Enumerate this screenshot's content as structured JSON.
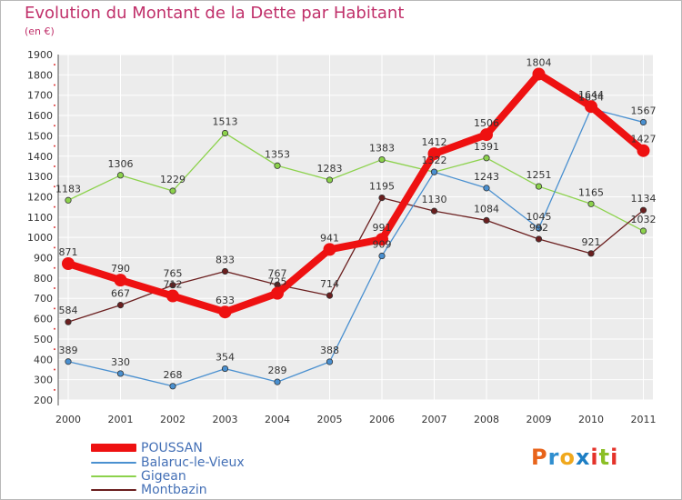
{
  "title": "Evolution du Montant de la Dette par Habitant",
  "subtitle": "(en €)",
  "logo": "Proxiti",
  "chart_data": {
    "type": "line",
    "x": [
      "2000",
      "2001",
      "2002",
      "2003",
      "2004",
      "2005",
      "2006",
      "2007",
      "2008",
      "2009",
      "2010",
      "2011"
    ],
    "yticks": [
      "200",
      "300",
      "400",
      "500",
      "600",
      "700",
      "800",
      "900",
      "1000",
      "1100",
      "1200",
      "1300",
      "1400",
      "1500",
      "1600",
      "1700",
      "1800",
      "1900"
    ],
    "ylim": [
      200,
      1900
    ],
    "grid": true,
    "legend_position": "bottom-left",
    "series": [
      {
        "name": "Balaruc-le-Vieux",
        "color": "#4a90d0",
        "values": [
          389,
          330,
          268,
          354,
          289,
          388,
          909,
          1322,
          1243,
          1045,
          1634,
          1567
        ],
        "labels": [
          "389",
          "330",
          "268",
          "354",
          "289",
          "388",
          "909",
          "1322",
          "1243",
          "1045",
          "1634",
          "1567"
        ]
      },
      {
        "name": "Gigean",
        "color": "#8cd24c",
        "values": [
          1183,
          1306,
          1229,
          1513,
          1353,
          1283,
          1383,
          1322,
          1391,
          1251,
          1165,
          1032
        ],
        "labels": [
          "1183",
          "1306",
          "1229",
          "1513",
          "1353",
          "1283",
          "1383",
          "",
          "1391",
          "1251",
          "1165",
          "1032"
        ]
      },
      {
        "name": "Montbazin",
        "color": "#6b1f1f",
        "values": [
          584,
          667,
          765,
          833,
          767,
          714,
          1195,
          1130,
          1084,
          992,
          921,
          1134
        ],
        "labels": [
          "584",
          "667",
          "765",
          "833",
          "767",
          "714",
          "1195",
          "1130",
          "1084",
          "992",
          "921",
          "1134"
        ]
      },
      {
        "name": "POUSSAN",
        "color": "#ee1111",
        "values": [
          871,
          790,
          712,
          633,
          725,
          941,
          991,
          1412,
          1506,
          1804,
          1644,
          1427
        ],
        "labels": [
          "871",
          "790",
          "712",
          "633",
          "725",
          "941",
          "991",
          "1412",
          "1506",
          "1804",
          "1644",
          "1427"
        ]
      }
    ]
  },
  "legend": [
    {
      "name": "POUSSAN",
      "color": "#ee1111"
    },
    {
      "name": "Balaruc-le-Vieux",
      "color": "#4a90d0"
    },
    {
      "name": "Gigean",
      "color": "#8cd24c"
    },
    {
      "name": "Montbazin",
      "color": "#6b1f1f"
    }
  ]
}
